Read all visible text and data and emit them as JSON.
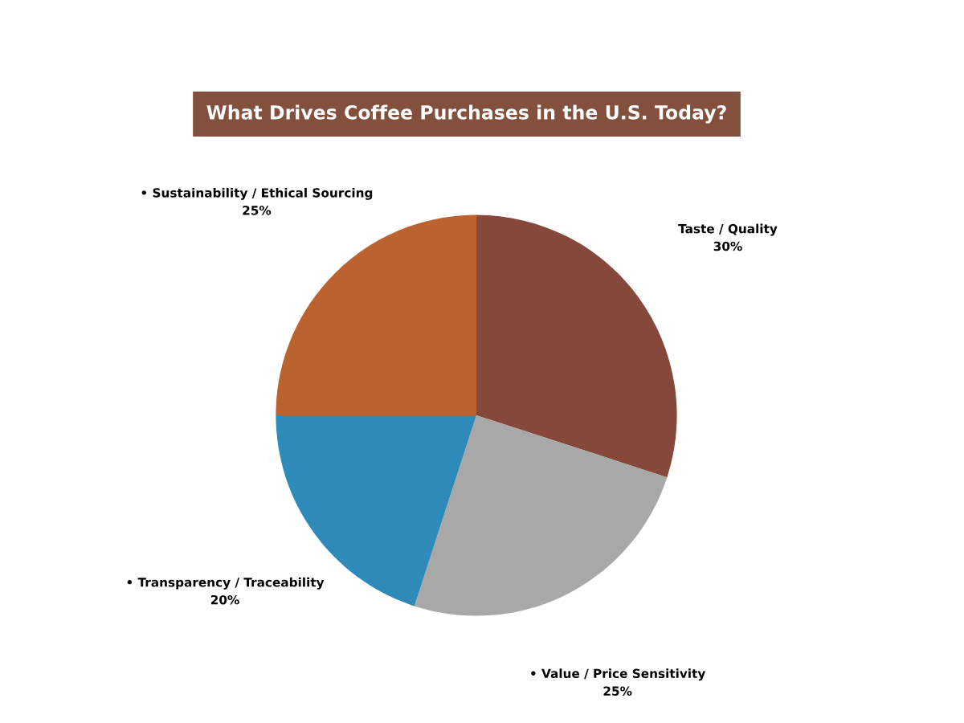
{
  "chart_data": {
    "type": "pie",
    "title": "What Drives Coffee Purchases in the U.S. Today?",
    "categories": [
      "Taste / Quality",
      "• Value / Price Sensitivity",
      "• Transparency / Traceability",
      "• Sustainability / Ethical Sourcing"
    ],
    "values": [
      30,
      25,
      20,
      25
    ],
    "value_labels": [
      "30%",
      "25%",
      "20%",
      "25%"
    ],
    "colors": [
      "#86483a",
      "#a8a8a8",
      "#2e8bb9",
      "#bb6330"
    ],
    "legend": false
  }
}
